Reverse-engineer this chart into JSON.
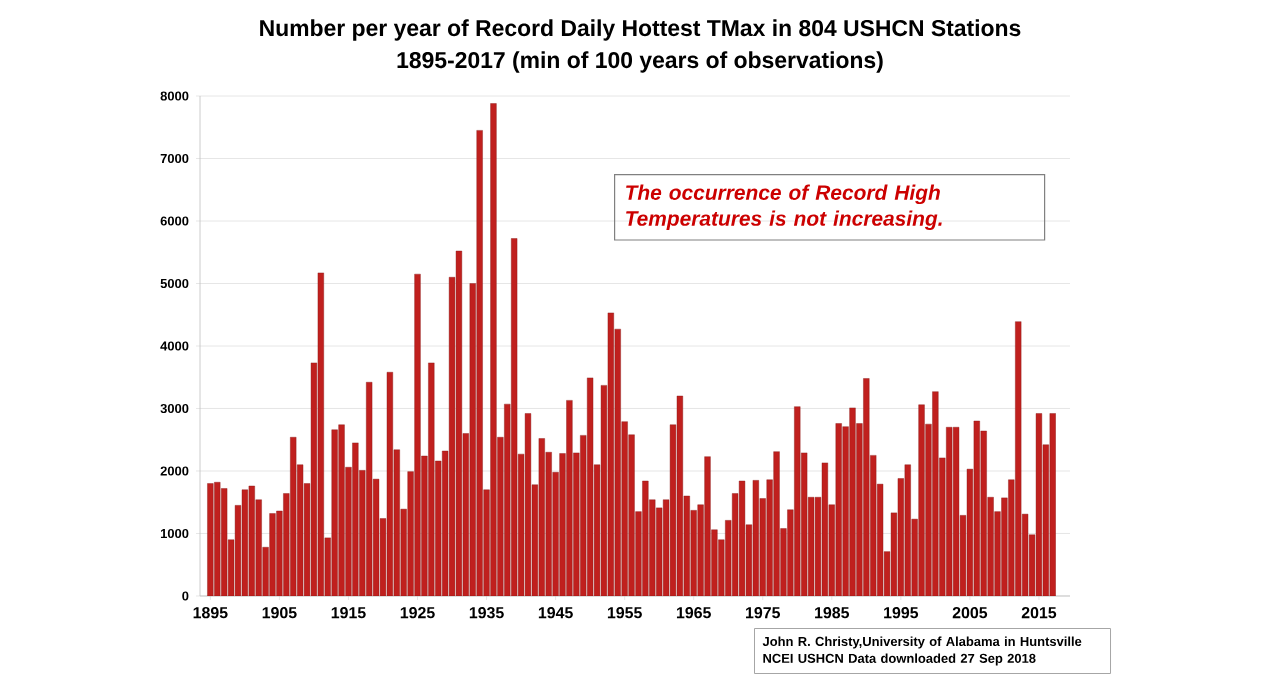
{
  "chart_data": {
    "type": "bar",
    "title": "Number per year of Record Daily Hottest TMax in 804 USHCN Stations",
    "subtitle": "1895-2017 (min of 100 years of observations)",
    "annotations": [
      "The occurrence of Record High Temperatures is not increasing.",
      "John R. Christy,University of Alabama in Huntsville",
      "NCEI USHCN Data downloaded 27 Sep 2018"
    ],
    "x": [
      1895,
      1896,
      1897,
      1898,
      1899,
      1900,
      1901,
      1902,
      1903,
      1904,
      1905,
      1906,
      1907,
      1908,
      1909,
      1910,
      1911,
      1912,
      1913,
      1914,
      1915,
      1916,
      1917,
      1918,
      1919,
      1920,
      1921,
      1922,
      1923,
      1924,
      1925,
      1926,
      1927,
      1928,
      1929,
      1930,
      1931,
      1932,
      1933,
      1934,
      1935,
      1936,
      1937,
      1938,
      1939,
      1940,
      1941,
      1942,
      1943,
      1944,
      1945,
      1946,
      1947,
      1948,
      1949,
      1950,
      1951,
      1952,
      1953,
      1954,
      1955,
      1956,
      1957,
      1958,
      1959,
      1960,
      1961,
      1962,
      1963,
      1964,
      1965,
      1966,
      1967,
      1968,
      1969,
      1970,
      1971,
      1972,
      1973,
      1974,
      1975,
      1976,
      1977,
      1978,
      1979,
      1980,
      1981,
      1982,
      1983,
      1984,
      1985,
      1986,
      1987,
      1988,
      1989,
      1990,
      1991,
      1992,
      1993,
      1994,
      1995,
      1996,
      1997,
      1998,
      1999,
      2000,
      2001,
      2002,
      2003,
      2004,
      2005,
      2006,
      2007,
      2008,
      2009,
      2010,
      2011,
      2012,
      2013,
      2014,
      2015,
      2016,
      2017
    ],
    "values": [
      1800,
      1820,
      1720,
      900,
      1450,
      1700,
      1760,
      1540,
      780,
      1320,
      1360,
      1640,
      2540,
      2100,
      1800,
      3730,
      5170,
      930,
      2660,
      2740,
      2060,
      2450,
      2010,
      3420,
      1870,
      1240,
      3580,
      2340,
      1390,
      1990,
      5150,
      2240,
      3730,
      2160,
      2320,
      5100,
      5520,
      2600,
      5000,
      7450,
      1700,
      7880,
      2540,
      3070,
      5720,
      2270,
      2920,
      1780,
      2520,
      2300,
      1980,
      2280,
      3130,
      2290,
      2570,
      3490,
      2100,
      3370,
      4530,
      4270,
      2790,
      2580,
      1350,
      1840,
      1540,
      1410,
      1540,
      2740,
      3200,
      1600,
      1370,
      1460,
      2230,
      1060,
      900,
      1210,
      1640,
      1840,
      1140,
      1850,
      1560,
      1860,
      2310,
      1080,
      1380,
      3030,
      2290,
      1580,
      1580,
      2130,
      1460,
      2760,
      2710,
      3010,
      2760,
      3480,
      2250,
      1790,
      710,
      1330,
      1880,
      2100,
      1230,
      3060,
      2750,
      3270,
      2210,
      2700,
      2700,
      1290,
      2030,
      2800,
      2640,
      1580,
      1350,
      1570,
      1860,
      4390,
      1310,
      980,
      2920,
      2420,
      2920
    ],
    "color": "#c0201e",
    "xlim": [
      1893.5,
      2019.5
    ],
    "xticks": [
      1895,
      1905,
      1915,
      1925,
      1935,
      1945,
      1955,
      1965,
      1975,
      1985,
      1995,
      2005,
      2015
    ],
    "ylim": [
      0,
      8000
    ],
    "yticks": [
      0,
      1000,
      2000,
      3000,
      4000,
      5000,
      6000,
      7000,
      8000
    ],
    "grid": "y"
  }
}
